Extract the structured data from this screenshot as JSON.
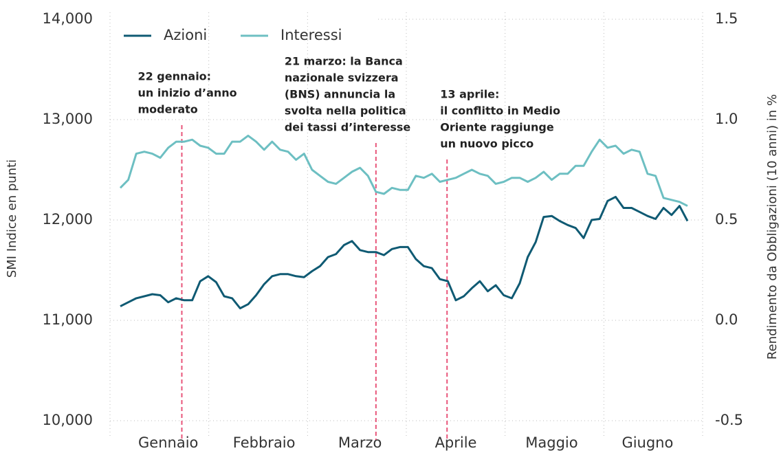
{
  "chart_data": {
    "type": "line",
    "ylabel": "SMI Indice en punti",
    "y2label": "Rendimento da Obbligazioni (10 anni) in %",
    "categories": [
      null,
      null,
      null,
      null,
      null,
      null,
      "Gennaio",
      null,
      null,
      null,
      null,
      null,
      null,
      null,
      null,
      null,
      null,
      null,
      "Febbraio",
      null,
      null,
      null,
      null,
      null,
      null,
      null,
      null,
      null,
      null,
      null,
      "Marzo",
      null,
      null,
      null,
      null,
      null,
      null,
      null,
      null,
      null,
      null,
      null,
      "Aprile",
      null,
      null,
      null,
      null,
      null,
      null,
      null,
      null,
      null,
      null,
      null,
      "Maggio",
      null,
      null,
      null,
      null,
      null,
      null,
      null,
      null,
      null,
      null,
      null,
      "Giugno",
      null,
      null,
      null,
      null,
      null
    ],
    "series": [
      {
        "name": "Azioni",
        "color": "#0f5a73",
        "values": [
          11140,
          11180,
          11220,
          11240,
          11260,
          11250,
          11180,
          11220,
          11200,
          11200,
          11390,
          11440,
          11380,
          11240,
          11220,
          11120,
          11160,
          11250,
          11360,
          11440,
          11460,
          11460,
          11440,
          11430,
          11490,
          11540,
          11630,
          11660,
          11750,
          11790,
          11700,
          11680,
          11680,
          11650,
          11710,
          11730,
          11730,
          11610,
          11540,
          11520,
          11410,
          11390,
          11200,
          11240,
          11320,
          11390,
          11290,
          11350,
          11250,
          11220,
          11370,
          11630,
          11780,
          12030,
          12040,
          11990,
          11950,
          11920,
          11820,
          12000,
          12010,
          12190,
          12230,
          12120,
          12120,
          12080,
          12040,
          12010,
          12120,
          12050,
          12140,
          11990
        ]
      },
      {
        "name": "Interessi",
        "color": "#6dbfc2",
        "axis": "y2",
        "values": [
          0.66,
          0.7,
          0.83,
          0.84,
          0.83,
          0.81,
          0.86,
          0.89,
          0.89,
          0.9,
          0.87,
          0.86,
          0.83,
          0.83,
          0.89,
          0.89,
          0.92,
          0.89,
          0.85,
          0.89,
          0.85,
          0.84,
          0.8,
          0.83,
          0.75,
          0.72,
          0.69,
          0.68,
          0.71,
          0.74,
          0.76,
          0.72,
          0.64,
          0.63,
          0.66,
          0.65,
          0.65,
          0.72,
          0.71,
          0.73,
          0.69,
          0.7,
          0.71,
          0.73,
          0.75,
          0.73,
          0.72,
          0.68,
          0.69,
          0.71,
          0.71,
          0.69,
          0.71,
          0.74,
          0.7,
          0.73,
          0.73,
          0.77,
          0.77,
          0.84,
          0.9,
          0.86,
          0.87,
          0.83,
          0.85,
          0.84,
          0.73,
          0.72,
          0.61,
          0.6,
          0.59,
          0.57
        ]
      }
    ],
    "ylim": [
      10000,
      14000
    ],
    "yticks": [
      {
        "value": 10000,
        "label": "10,000"
      },
      {
        "value": 11000,
        "label": "11,000"
      },
      {
        "value": 12000,
        "label": "12,000"
      },
      {
        "value": 13000,
        "label": "13,000"
      },
      {
        "value": 14000,
        "label": "14,000"
      }
    ],
    "y2lim": [
      -0.5,
      1.5
    ],
    "y2ticks": [
      -0.5,
      {
        "value": 0,
        "label": "0.0"
      },
      0.5,
      {
        "value": 1,
        "label": "1.0"
      },
      1.5
    ],
    "grid": true,
    "legend": "top-left",
    "annotations": [
      {
        "x": 7.7,
        "lines": [
          "22 gennaio:",
          "un inizio d’anno",
          "moderato"
        ]
      },
      {
        "x": 32,
        "lines": [
          "21 marzo: la Banca",
          "nazionale svizzera",
          "(BNS) annuncia la",
          "svolta nella politica",
          "dei tassi d’interesse"
        ]
      },
      {
        "x": 40.9,
        "lines": [
          "13 aprile:",
          "il conflitto in Medio",
          "Oriente raggiunge",
          "un nuovo picco"
        ]
      }
    ]
  }
}
